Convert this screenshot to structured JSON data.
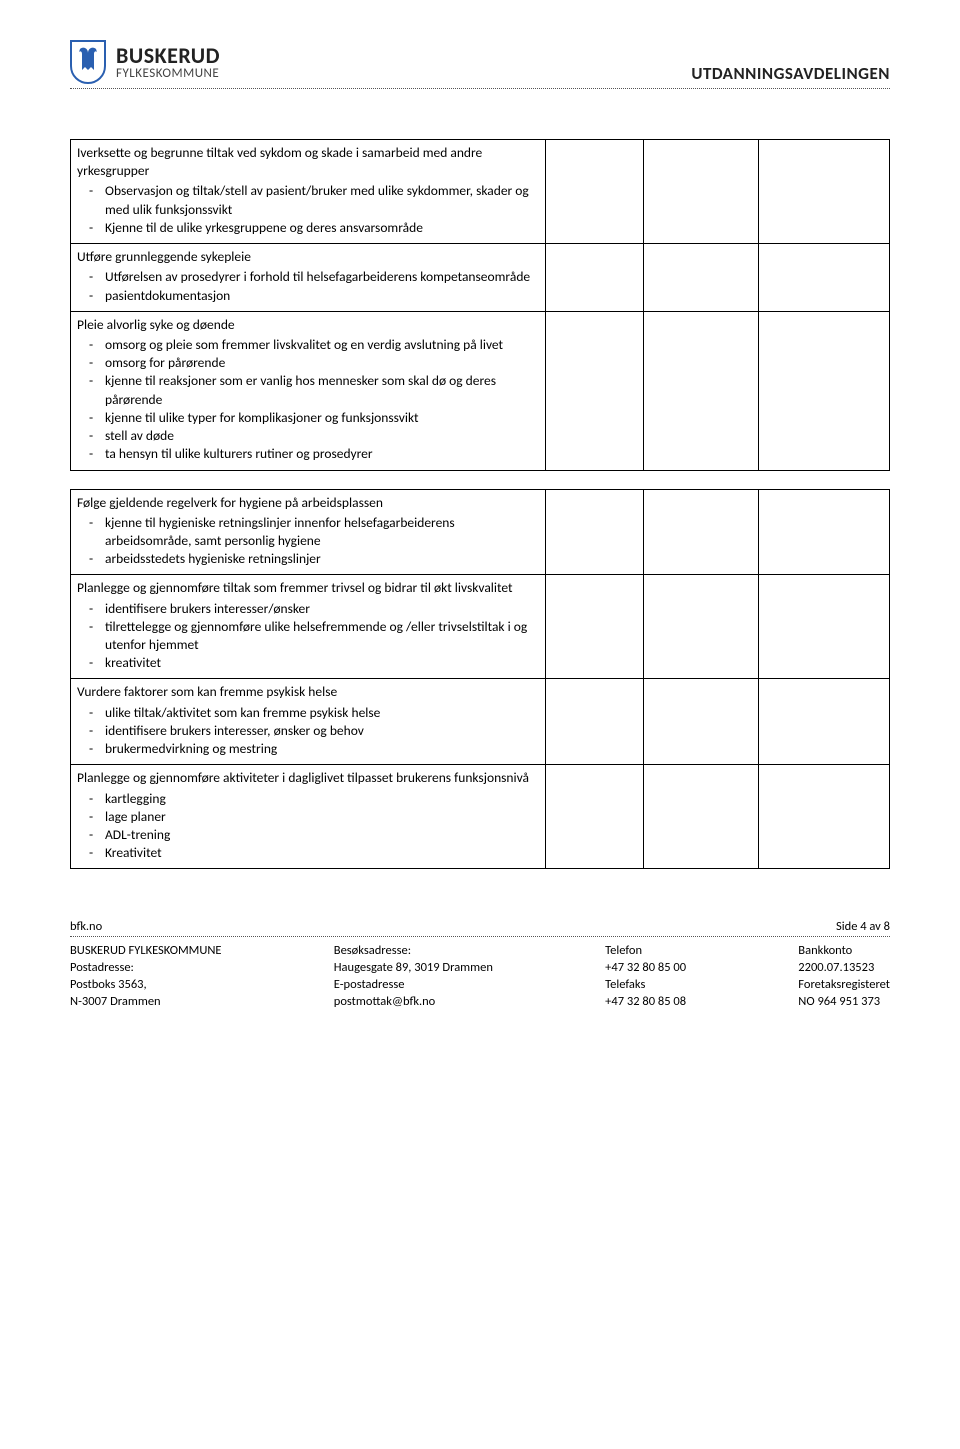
{
  "colors": {
    "shield_blue": "#2a5fb0",
    "text": "#000000",
    "background": "#ffffff",
    "rule": "#555555"
  },
  "header": {
    "org_main": "BUSKERUD",
    "org_sub": "FYLKESKOMMUNE",
    "department": "UTDANNINGSAVDELINGEN"
  },
  "table1": [
    {
      "title": "Iverksette og begrunne tiltak ved sykdom og skade i samarbeid med andre yrkesgrupper",
      "items": [
        "Observasjon og tiltak/stell av pasient/bruker med ulike sykdommer, skader og med ulik funksjonssvikt",
        "Kjenne til de ulike yrkesgruppene og deres ansvarsområde"
      ]
    },
    {
      "title": "Utføre grunnleggende sykepleie",
      "items": [
        "Utførelsen av prosedyrer i forhold til helsefagarbeiderens kompetanseområde",
        "pasientdokumentasjon"
      ]
    },
    {
      "title": "Pleie alvorlig syke og døende",
      "items": [
        "omsorg og pleie som fremmer livskvalitet og en verdig avslutning på livet",
        "omsorg for pårørende",
        "kjenne til reaksjoner som er vanlig hos mennesker som skal dø og deres pårørende",
        "kjenne til ulike typer for komplikasjoner og funksjonssvikt",
        "stell av døde",
        "ta hensyn til ulike kulturers rutiner og prosedyrer"
      ]
    }
  ],
  "table2": [
    {
      "title": "Følge gjeldende regelverk for hygiene på arbeidsplassen",
      "items": [
        "kjenne til hygieniske retningslinjer innenfor helsefagarbeiderens arbeidsområde, samt personlig hygiene",
        "arbeidsstedets hygieniske retningslinjer"
      ]
    },
    {
      "title": "Planlegge og gjennomføre tiltak som fremmer trivsel og bidrar til økt livskvalitet",
      "items": [
        "identifisere brukers interesser/ønsker",
        "tilrettelegge og gjennomføre ulike helsefremmende og /eller trivselstiltak i og utenfor hjemmet",
        "kreativitet"
      ]
    },
    {
      "title": "Vurdere faktorer som kan fremme psykisk helse",
      "items": [
        "ulike tiltak/aktivitet som kan fremme psykisk helse",
        "identifisere brukers interesser, ønsker og behov",
        "brukermedvirkning og mestring"
      ]
    },
    {
      "title": "Planlegge og gjennomføre aktiviteter i dagliglivet tilpasset brukerens funksjonsnivå",
      "items": [
        "kartlegging",
        "lage planer",
        "ADL-trening",
        "Kreativitet"
      ]
    }
  ],
  "footer": {
    "url": "bfk.no",
    "page": "Side 4 av 8",
    "cols": [
      [
        "BUSKERUD FYLKESKOMMUNE",
        "Postadresse:",
        "Postboks 3563,",
        "N-3007 Drammen"
      ],
      [
        "Besøksadresse:",
        "Haugesgate 89, 3019 Drammen",
        "E-postadresse",
        "postmottak@bfk.no"
      ],
      [
        "Telefon",
        "+47 32 80 85 00",
        "Telefaks",
        "+47 32 80 85 08"
      ],
      [
        "Bankkonto",
        "2200.07.13523",
        "Foretaksregisteret",
        "NO 964 951 373"
      ]
    ]
  }
}
